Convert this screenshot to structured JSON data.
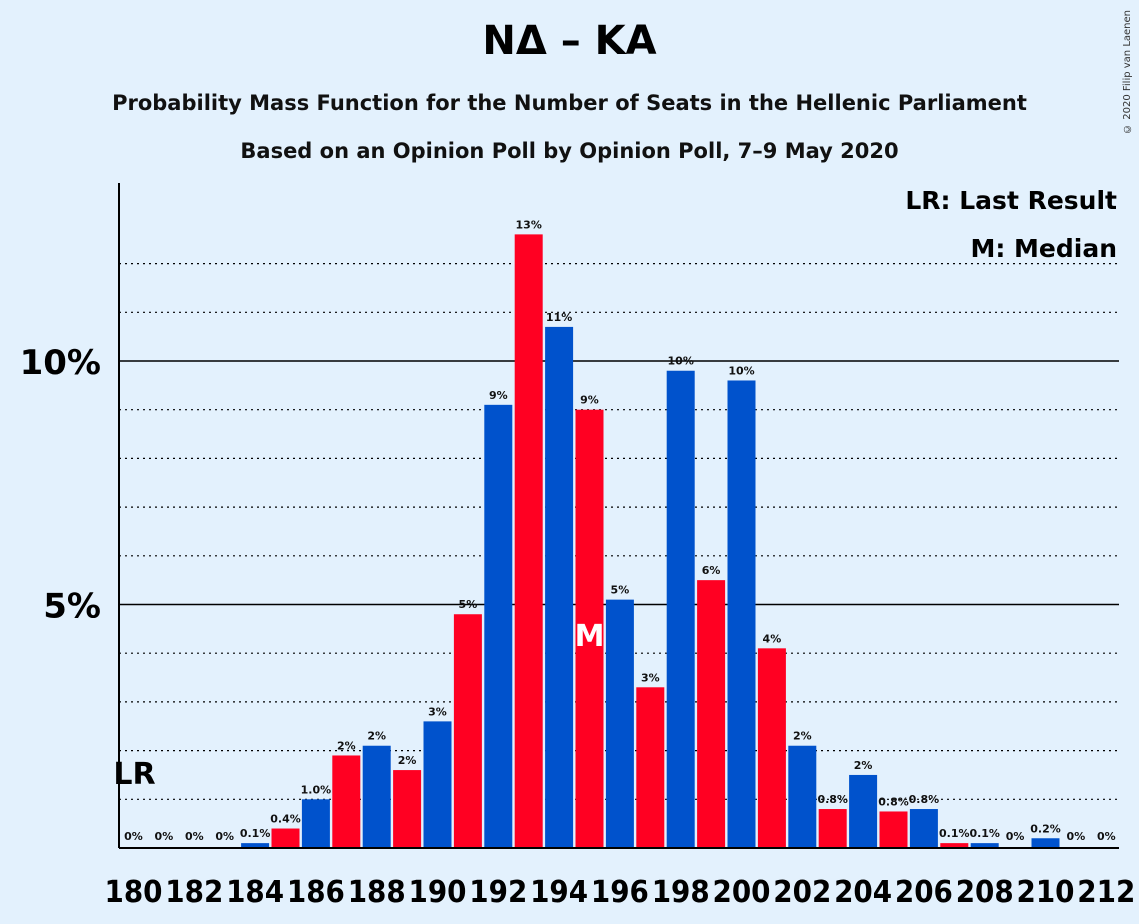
{
  "title": "NΔ – KA",
  "subtitle_1": "Probability Mass Function for the Number of Seats in the Hellenic Parliament",
  "subtitle_2": "Based on an Opinion Poll by Opinion Poll, 7–9 May 2020",
  "copyright": "© 2020 Filip van Laenen",
  "colors": {
    "primary": "#0052cc",
    "secondary": "#ff0022",
    "background": "#e3f1fd"
  },
  "chart_data": {
    "type": "bar",
    "x": [
      180,
      181,
      182,
      183,
      184,
      185,
      186,
      187,
      188,
      189,
      190,
      191,
      192,
      193,
      194,
      195,
      196,
      197,
      198,
      199,
      200,
      201,
      202,
      203,
      204,
      205,
      206,
      207,
      208,
      209,
      210,
      211,
      212
    ],
    "values": [
      0,
      0,
      0,
      0,
      0.1,
      0.4,
      1.0,
      1.9,
      2.1,
      1.6,
      2.6,
      4.8,
      9.1,
      12.6,
      10.7,
      9.0,
      5.1,
      3.3,
      9.8,
      5.5,
      9.6,
      4.1,
      2.1,
      0.8,
      1.5,
      0.75,
      0.8,
      0.1,
      0.1,
      0,
      0.2,
      0,
      0
    ],
    "data_labels": [
      "0%",
      "0%",
      "0%",
      "0%",
      "0.1%",
      "0.4%",
      "1.0%",
      "2%",
      "2%",
      "2%",
      "3%",
      "5%",
      "9%",
      "13%",
      "11%",
      "9%",
      "5%",
      "3%",
      "10%",
      "6%",
      "10%",
      "4%",
      "2%",
      "0.8%",
      "2%",
      "0.8%",
      "0.8%",
      "0.1%",
      "0.1%",
      "0%",
      "0.2%",
      "0%",
      "0%"
    ],
    "tick_labels": [
      "180",
      "182",
      "184",
      "186",
      "188",
      "190",
      "192",
      "194",
      "196",
      "198",
      "200",
      "202",
      "204",
      "206",
      "208",
      "210",
      "212"
    ],
    "ytick_labels": [
      "5%",
      "10%"
    ],
    "ylim": [
      0,
      13.5
    ],
    "last_result": 180,
    "median": 195,
    "last_result_marker": "LR",
    "median_marker": "M",
    "legend": [
      "LR: Last Result",
      "M: Median"
    ],
    "legend_position": "top-right",
    "grid": true
  }
}
